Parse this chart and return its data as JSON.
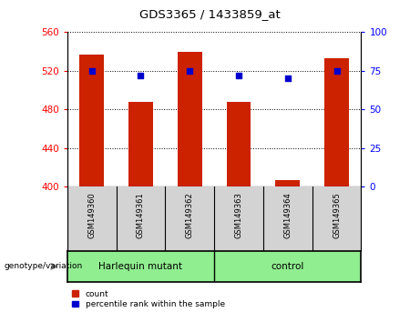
{
  "title": "GDS3365 / 1433859_at",
  "samples": [
    "GSM149360",
    "GSM149361",
    "GSM149362",
    "GSM149363",
    "GSM149364",
    "GSM149365"
  ],
  "counts": [
    537,
    488,
    540,
    488,
    407,
    533
  ],
  "percentile_ranks": [
    75,
    72,
    75,
    72,
    70,
    75
  ],
  "ylim_left": [
    400,
    560
  ],
  "ylim_right": [
    0,
    100
  ],
  "yticks_left": [
    400,
    440,
    480,
    520,
    560
  ],
  "yticks_right": [
    0,
    25,
    50,
    75,
    100
  ],
  "bar_color": "#cc2200",
  "dot_color": "#0000cc",
  "bar_width": 0.5,
  "tick_label_area_color": "#d3d3d3",
  "group_label_area_color": "#90ee90",
  "genotype_label": "genotype/variation",
  "group_labels": [
    "Harlequin mutant",
    "control"
  ],
  "legend_labels": [
    "count",
    "percentile rank within the sample"
  ],
  "fig_width": 4.61,
  "fig_height": 3.54,
  "dpi": 100
}
